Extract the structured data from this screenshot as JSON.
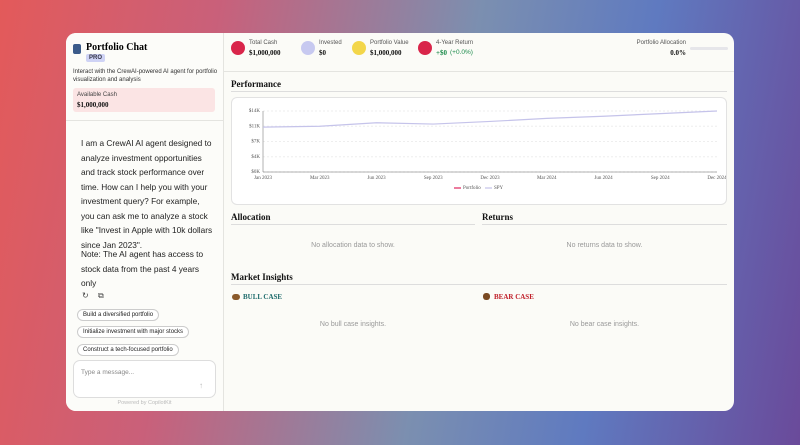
{
  "sidebar": {
    "title": "Portfolio Chat",
    "badge": "PRO",
    "description": "Interact with the CrewAI-powered AI agent for portfolio visualization and analysis",
    "cash_label": "Available Cash",
    "cash_value": "$1,000,000",
    "messages": [
      "I am a CrewAI AI agent designed to analyze investment opportunities and track stock performance over time. How can I help you with your investment query? For example, you can ask me to analyze a stock like \"Invest in Apple with 10k dollars since Jan 2023\".",
      "Note: The AI agent has access to stock data from the past 4 years only"
    ],
    "suggestions": [
      "Build a diversified portfolio",
      "Initialize investment with major stocks",
      "Construct a tech-focused portfolio"
    ],
    "input_placeholder": "Type a message...",
    "footer": "Powered by CopilotKit"
  },
  "stats": [
    {
      "label": "Total Cash",
      "value": "$1,000,000"
    },
    {
      "label": "Invested",
      "value": "$0"
    },
    {
      "label": "Portfolio Value",
      "value": "$1,000,000"
    },
    {
      "label": "4-Year Return",
      "value": "+$0",
      "change": "(+0.0%)"
    }
  ],
  "allocation_summary": {
    "label": "Portfolio Allocation",
    "value": "0.0%"
  },
  "performance": {
    "title": "Performance",
    "chart_data": {
      "type": "line",
      "categories": [
        "Jan 2023",
        "Mar 2023",
        "Jun 2023",
        "Sep 2023",
        "Dec 2023",
        "Mar 2024",
        "Jun 2024",
        "Sep 2024",
        "Dec 2024"
      ],
      "series": [
        {
          "name": "Portfolio",
          "color": "#e0245e",
          "values": [
            null,
            null,
            null,
            null,
            null,
            null,
            null,
            null,
            null
          ]
        },
        {
          "name": "SPY",
          "color": "#c5c3ea",
          "values": [
            10300,
            10500,
            11300,
            11000,
            11600,
            12300,
            12800,
            13400,
            14000
          ]
        }
      ],
      "ylim": [
        0,
        14000
      ],
      "yticks": [
        {
          "value": 0,
          "label": "$0K"
        },
        {
          "value": 3500,
          "label": "$4K"
        },
        {
          "value": 7000,
          "label": "$7K"
        },
        {
          "value": 10500,
          "label": "$11K"
        },
        {
          "value": 14000,
          "label": "$14K"
        }
      ],
      "grid": true,
      "legend": "bottom"
    }
  },
  "allocation": {
    "title": "Allocation",
    "empty": "No allocation data to show."
  },
  "returns": {
    "title": "Returns",
    "empty": "No returns data to show."
  },
  "insights": {
    "title": "Market Insights",
    "bull": {
      "title": "BULL CASE",
      "empty": "No bull case insights."
    },
    "bear": {
      "title": "BEAR CASE",
      "empty": "No bear case insights."
    }
  }
}
